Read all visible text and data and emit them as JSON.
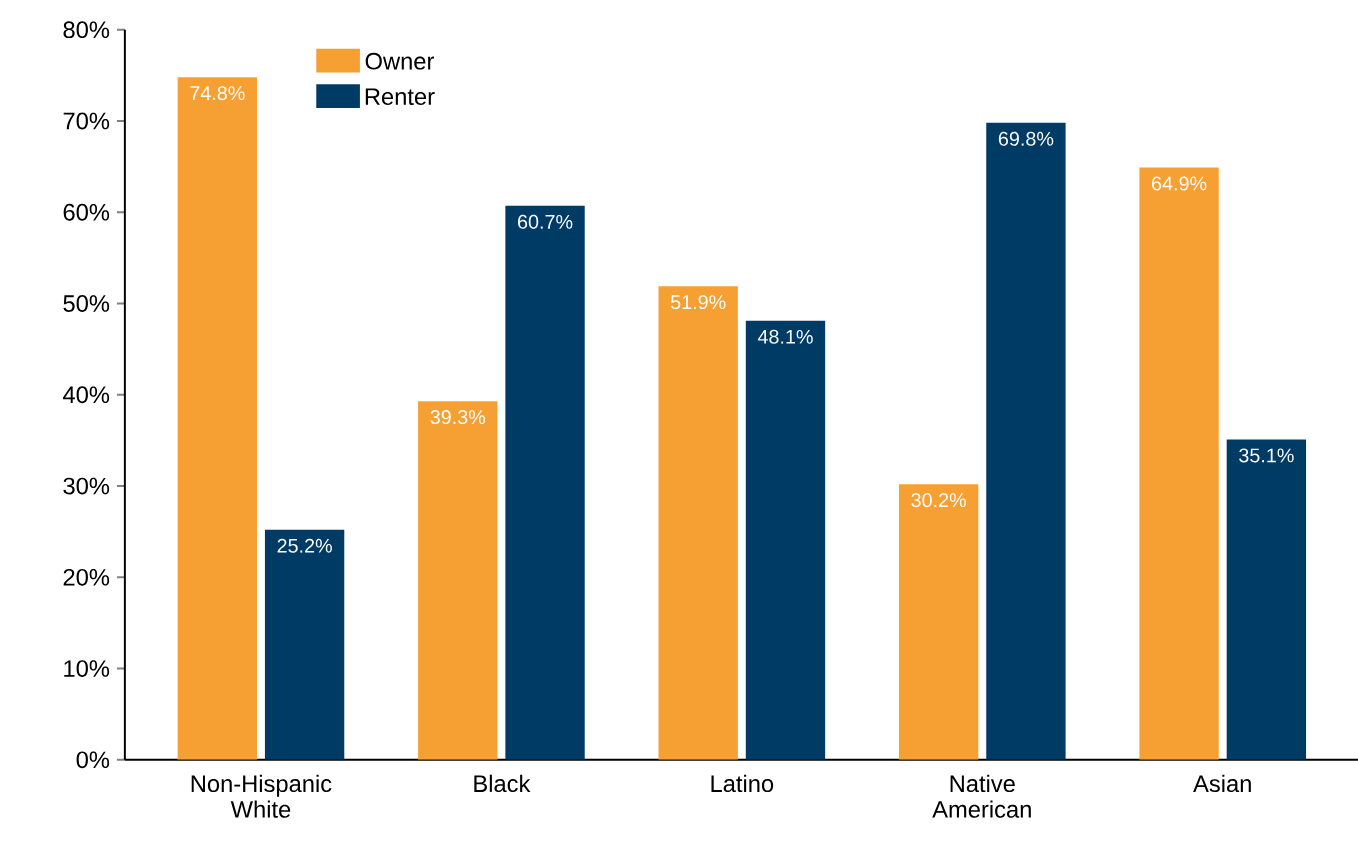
{
  "chart_data": {
    "type": "bar",
    "categories": [
      "Non-Hispanic White",
      "Black",
      "Latino",
      "Native American",
      "Asian"
    ],
    "series": [
      {
        "name": "Owner",
        "color": "#f6a033",
        "values": [
          74.8,
          39.3,
          51.9,
          30.2,
          64.9
        ],
        "value_labels": [
          "74.8%",
          "39.3%",
          "51.9%",
          "30.2%",
          "64.9%"
        ]
      },
      {
        "name": "Renter",
        "color": "#003b66",
        "values": [
          25.2,
          60.7,
          48.1,
          69.8,
          35.1
        ],
        "value_labels": [
          "25.2%",
          "60.7%",
          "48.1%",
          "69.8%",
          "35.1%"
        ]
      }
    ],
    "ylim": [
      0,
      80
    ],
    "yticks": [
      {
        "value": 0,
        "label": "0%"
      },
      {
        "value": 10,
        "label": "10%"
      },
      {
        "value": 20,
        "label": "20%"
      },
      {
        "value": 30,
        "label": "30%"
      },
      {
        "value": 40,
        "label": "40%"
      },
      {
        "value": 50,
        "label": "50%"
      },
      {
        "value": 60,
        "label": "60%"
      },
      {
        "value": 70,
        "label": "70%"
      },
      {
        "value": 80,
        "label": "80%"
      }
    ],
    "grid": false,
    "legend": "top left"
  }
}
